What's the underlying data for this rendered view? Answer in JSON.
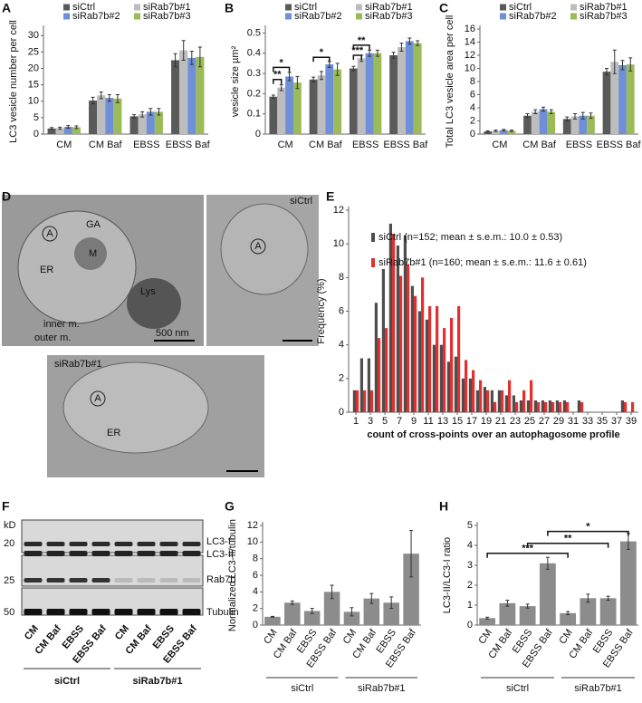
{
  "chart_data": [
    {
      "type": "bar",
      "panel": "A",
      "y_label": "LC3 vesicle number per cell",
      "categories": [
        "CM",
        "CM Baf",
        "EBSS",
        "EBSS Baf"
      ],
      "series": [
        {
          "name": "siCtrl",
          "color": "#5a5a5a",
          "values": [
            1.7,
            10.2,
            5.4,
            22.5
          ],
          "errors": [
            0.3,
            1.0,
            0.5,
            2.0
          ]
        },
        {
          "name": "siRab7b#1",
          "color": "#bdbdbd",
          "values": [
            1.8,
            11.8,
            6.0,
            25.5
          ],
          "errors": [
            0.3,
            1.0,
            0.8,
            3.0
          ]
        },
        {
          "name": "siRab7b#2",
          "color": "#6f8fd8",
          "values": [
            2.2,
            11.0,
            6.8,
            23.2
          ],
          "errors": [
            0.4,
            1.0,
            1.0,
            2.0
          ]
        },
        {
          "name": "siRab7b#3",
          "color": "#9bbb59",
          "values": [
            2.1,
            10.8,
            6.8,
            23.5
          ],
          "errors": [
            0.4,
            1.2,
            1.0,
            3.0
          ]
        }
      ],
      "ylim": [
        0,
        32
      ],
      "yticks": [
        0,
        5,
        10,
        15,
        20,
        25,
        30
      ],
      "grid": false,
      "legend": "top"
    },
    {
      "type": "bar",
      "panel": "B",
      "y_label": "vesicle size µm²",
      "categories": [
        "CM",
        "CM Baf",
        "EBSS",
        "EBSS Baf"
      ],
      "series": [
        {
          "name": "siCtrl",
          "color": "#5a5a5a",
          "values": [
            0.185,
            0.27,
            0.325,
            0.39
          ],
          "errors": [
            0.008,
            0.012,
            0.01,
            0.015
          ]
        },
        {
          "name": "siRab7b#1",
          "color": "#bdbdbd",
          "values": [
            0.23,
            0.29,
            0.375,
            0.43
          ],
          "errors": [
            0.015,
            0.02,
            0.015,
            0.02
          ]
        },
        {
          "name": "siRab7b#2",
          "color": "#6f8fd8",
          "values": [
            0.285,
            0.345,
            0.4,
            0.46
          ],
          "errors": [
            0.02,
            0.015,
            0.015,
            0.015
          ]
        },
        {
          "name": "siRab7b#3",
          "color": "#9bbb59",
          "values": [
            0.255,
            0.32,
            0.4,
            0.45
          ],
          "errors": [
            0.03,
            0.03,
            0.015,
            0.012
          ]
        }
      ],
      "ylim": [
        0,
        0.52
      ],
      "yticks": [
        0,
        0.1,
        0.2,
        0.3,
        0.4,
        0.5
      ],
      "grid": false,
      "legend": "top",
      "annotations": [
        "**",
        "*",
        "*",
        "***",
        "**"
      ]
    },
    {
      "type": "bar",
      "panel": "C",
      "y_label": "Total LC3 vesicle area per cell",
      "categories": [
        "CM",
        "CM Baf",
        "EBSS",
        "EBSS Baf"
      ],
      "series": [
        {
          "name": "siCtrl",
          "color": "#5a5a5a",
          "values": [
            0.4,
            2.8,
            2.3,
            9.5
          ],
          "errors": [
            0.1,
            0.3,
            0.3,
            0.5
          ]
        },
        {
          "name": "siRab7b#1",
          "color": "#bdbdbd",
          "values": [
            0.5,
            3.4,
            2.7,
            11.0
          ],
          "errors": [
            0.1,
            0.3,
            0.4,
            1.8
          ]
        },
        {
          "name": "siRab7b#2",
          "color": "#6f8fd8",
          "values": [
            0.6,
            3.8,
            2.8,
            10.5
          ],
          "errors": [
            0.1,
            0.3,
            0.5,
            0.7
          ]
        },
        {
          "name": "siRab7b#3",
          "color": "#9bbb59",
          "values": [
            0.5,
            3.4,
            2.8,
            10.6
          ],
          "errors": [
            0.1,
            0.3,
            0.4,
            1.0
          ]
        }
      ],
      "ylim": [
        0,
        16
      ],
      "yticks": [
        0,
        2,
        4,
        6,
        8,
        10,
        12,
        14,
        16
      ],
      "grid": false,
      "legend": "top"
    },
    {
      "type": "bar",
      "panel": "E",
      "y_label": "Frequency (%)",
      "x_label": "count of cross-points over an autophagosome profile",
      "x": [
        1,
        2,
        3,
        4,
        5,
        6,
        7,
        8,
        9,
        10,
        11,
        12,
        13,
        14,
        15,
        16,
        17,
        18,
        19,
        20,
        21,
        22,
        23,
        24,
        25,
        26,
        27,
        28,
        29,
        30,
        31,
        32,
        33,
        34,
        35,
        36,
        37,
        38,
        39
      ],
      "series": [
        {
          "name": "siCtrl (n=152;  mean ± s.e.m.: 10.0 ± 0.53)",
          "color": "#4d4d4d",
          "values": [
            1.3,
            3.2,
            3.2,
            6.5,
            8.5,
            11.2,
            9.9,
            10.5,
            7.5,
            6.0,
            5.5,
            4.0,
            4.0,
            3.0,
            3.3,
            2.0,
            2.0,
            1.3,
            1.5,
            1.3,
            1.3,
            1.0,
            1.0,
            0.7,
            0.7,
            0.7,
            0.7,
            0.7,
            0.7,
            0.7,
            0,
            0.7,
            0,
            0,
            0,
            0,
            0,
            0.7,
            0
          ]
        },
        {
          "name": "siRab7b#1 (n=160;  mean ± s.e.m.: 11.6 ± 0.61)",
          "color": "#e03030",
          "values": [
            1.3,
            1.3,
            1.3,
            4.4,
            5.0,
            10.6,
            8.1,
            8.8,
            6.9,
            8.0,
            6.3,
            6.3,
            5.0,
            5.6,
            6.3,
            3.1,
            2.5,
            1.9,
            1.3,
            0.6,
            1.3,
            1.9,
            0.6,
            1.3,
            1.9,
            0.6,
            0.6,
            0.6,
            0.6,
            0.6,
            0,
            0.6,
            0,
            0,
            0,
            0,
            0,
            0.6,
            0.6
          ]
        }
      ],
      "xlim": [
        0,
        40
      ],
      "xticks": [
        1,
        3,
        5,
        7,
        9,
        11,
        13,
        15,
        17,
        19,
        21,
        23,
        25,
        27,
        29,
        31,
        33,
        35,
        37,
        39
      ],
      "ylim": [
        0,
        12
      ],
      "yticks": [
        0,
        2,
        4,
        6,
        8,
        10,
        12
      ],
      "grid": false,
      "legend": "upper right"
    },
    {
      "type": "bar",
      "panel": "G",
      "y_label": "Normalized LC3-II/tubulin",
      "categories": [
        "CM",
        "CM Baf",
        "EBSS",
        "EBSS Baf",
        "CM",
        "CM Baf",
        "EBSS",
        "EBSS Baf"
      ],
      "groups": [
        "siCtrl",
        "siRab7b#1"
      ],
      "color": "#8c8c8c",
      "values": [
        1.0,
        2.7,
        1.7,
        4.0,
        1.6,
        3.2,
        2.7,
        8.6
      ],
      "errors": [
        0.05,
        0.2,
        0.3,
        0.8,
        0.5,
        0.6,
        0.7,
        2.8
      ],
      "ylim": [
        0,
        12
      ],
      "yticks": [
        0,
        2,
        4,
        6,
        8,
        10,
        12
      ],
      "grid": false
    },
    {
      "type": "bar",
      "panel": "H",
      "y_label": "LC3-II/LC3-I ratio",
      "categories": [
        "CM",
        "CM Baf",
        "EBSS",
        "EBSS Baf",
        "CM",
        "CM Baf",
        "EBSS",
        "EBSS Baf"
      ],
      "groups": [
        "siCtrl",
        "siRab7b#1"
      ],
      "color": "#8c8c8c",
      "values": [
        0.35,
        1.1,
        0.95,
        3.1,
        0.6,
        1.35,
        1.35,
        4.2
      ],
      "errors": [
        0.05,
        0.15,
        0.1,
        0.3,
        0.08,
        0.2,
        0.1,
        0.4
      ],
      "ylim": [
        0,
        5
      ],
      "yticks": [
        0,
        1,
        2,
        3,
        4,
        5
      ],
      "grid": false,
      "annotations": [
        "***",
        "**",
        "*"
      ]
    }
  ],
  "micrographs": {
    "panel": "D",
    "texts": [
      "siCtrl",
      "A",
      "GA",
      "M",
      "ER",
      "Lys",
      "inner m.",
      "outer m.",
      "500 nm",
      "A",
      "siRab7b#1",
      "A",
      "ER"
    ]
  },
  "blot": {
    "panel": "F",
    "unit": "kD",
    "markers": [
      20,
      25,
      50
    ],
    "bands": [
      "LC3-I",
      "LC3-II",
      "Rab7b",
      "Tubulin"
    ],
    "lanes": [
      "CM",
      "CM Baf",
      "EBSS",
      "EBSS Baf",
      "CM",
      "CM Baf",
      "EBSS",
      "EBSS Baf"
    ],
    "groups": [
      "siCtrl",
      "siRab7b#1"
    ]
  }
}
